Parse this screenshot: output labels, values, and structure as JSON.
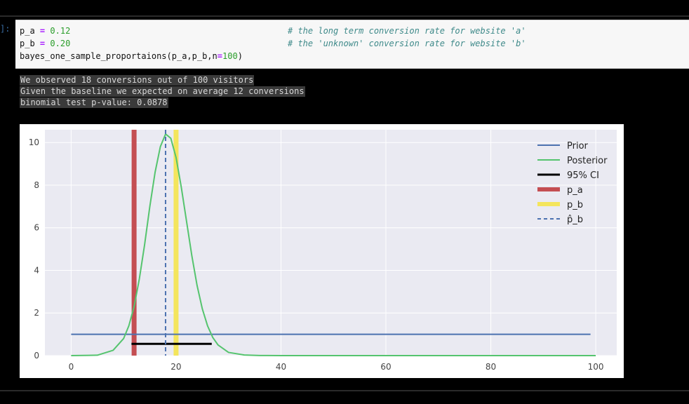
{
  "prompt": "]:",
  "code": {
    "line1_var": "p_a",
    "line1_eq": "=",
    "line1_val": "0.12",
    "line1_comment": "# the long term conversion rate for website 'a'",
    "line2_var": "p_b",
    "line2_eq": "=",
    "line2_val": "0.20",
    "line2_comment": "# the 'unknown' conversion rate for website 'b'",
    "line3_prefix": "bayes_one_sample_proportaions(p_a,p_b,n",
    "line3_eq": "=",
    "line3_val": "100",
    "line3_suffix": ")"
  },
  "output": [
    "We observed 18 conversions out of 100 visitors",
    "Given the baseline we expected on average 12 conversions",
    "binomial test p-value: 0.0878"
  ],
  "chart_data": {
    "type": "line",
    "xlim": [
      -5,
      104
    ],
    "ylim": [
      0,
      10.6
    ],
    "xticks": [
      0,
      20,
      40,
      60,
      80,
      100
    ],
    "yticks": [
      0,
      2,
      4,
      6,
      8,
      10
    ],
    "grid": true,
    "legend_position": "top-right",
    "legend": [
      "Prior",
      "Posterior",
      "95% CI",
      "p_a",
      "p_b",
      "p̂_b"
    ],
    "series": {
      "prior": {
        "name": "Prior",
        "x_range": [
          0,
          99
        ],
        "y": 1.0,
        "color": "#4c72b0"
      },
      "posterior": {
        "name": "Posterior",
        "color": "#55c46e",
        "x": [
          0,
          5,
          8,
          10,
          11,
          12,
          13,
          14,
          15,
          16,
          17,
          18,
          19,
          20,
          21,
          22,
          23,
          24,
          25,
          26,
          27,
          28,
          30,
          33,
          36,
          40,
          100
        ],
        "y": [
          0,
          0.02,
          0.25,
          0.8,
          1.4,
          2.3,
          3.6,
          5.2,
          7.0,
          8.6,
          9.8,
          10.4,
          10.2,
          9.3,
          7.9,
          6.3,
          4.7,
          3.3,
          2.2,
          1.4,
          0.85,
          0.5,
          0.15,
          0.03,
          0.005,
          0,
          0
        ]
      },
      "ci": {
        "name": "95% CI",
        "x_range": [
          11.5,
          26.8
        ],
        "y": 0.55,
        "color": "#000000"
      },
      "p_a": {
        "name": "p_a",
        "x": 12,
        "color": "#c44e52"
      },
      "p_b": {
        "name": "p_b",
        "x": 20,
        "color": "#f4e55c"
      },
      "p_hat_b": {
        "name": "p̂_b",
        "x": 18,
        "color": "#4c72b0"
      }
    }
  }
}
